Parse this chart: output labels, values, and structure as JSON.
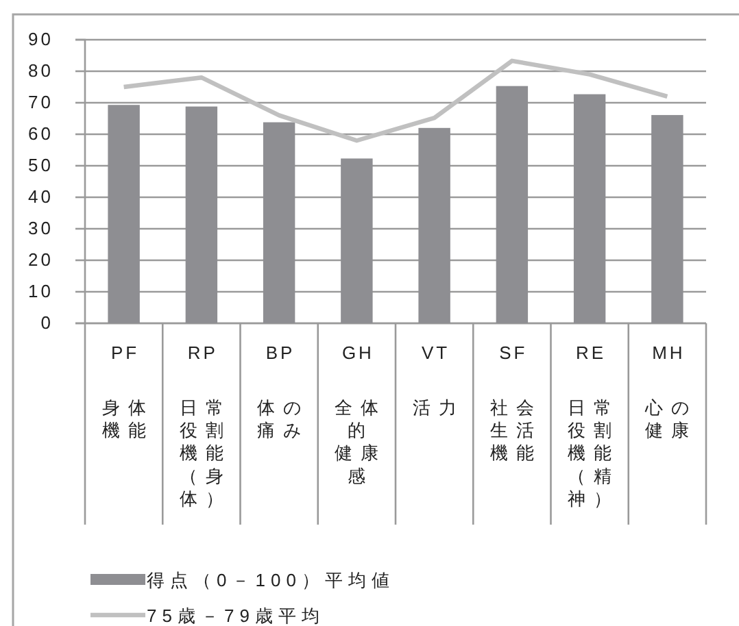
{
  "chart_data": {
    "type": "bar",
    "categories": [
      "PF\n身体機能",
      "RP\n日常役割機能（身体）",
      "BP\n体の痛み",
      "GH\n全体的健康感",
      "VT\n活力",
      "SF\n社会生活機能",
      "RE\n日常役割機能（精神）",
      "MH\n心の健康"
    ],
    "series": [
      {
        "name": "得点（0－100）平均値",
        "color": "#8e8e92",
        "values": [
          69.3,
          68.8,
          63.8,
          52.3,
          62,
          75.3,
          72.7,
          66.1
        ]
      },
      {
        "name": "75歳－79歳平均",
        "type": "line",
        "color": "#c0c0c0",
        "values": [
          75,
          78,
          66,
          58,
          65.2,
          83.3,
          79,
          72
        ]
      }
    ],
    "ylim": [
      0,
      90
    ],
    "yticks": [
      0,
      10,
      20,
      30,
      40,
      50,
      60,
      70,
      80,
      90
    ],
    "grid": "y",
    "legend": "bottom left"
  }
}
